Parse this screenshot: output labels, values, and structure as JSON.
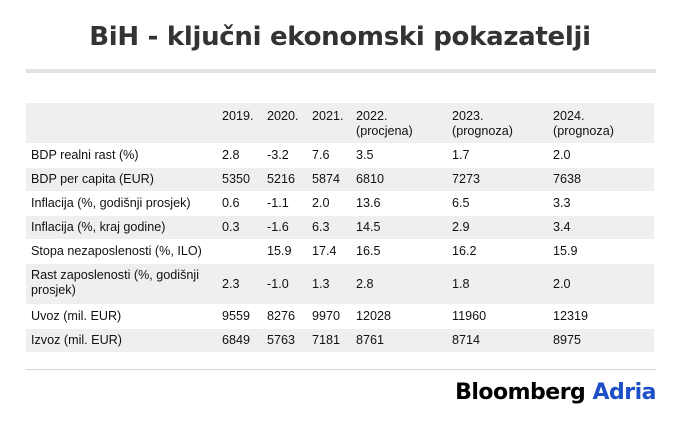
{
  "title": "BiH - ključni ekonomski pokazatelji",
  "table": {
    "header": [
      "",
      "2019.",
      "2020.",
      "2021.",
      "2022.\n(procjena)",
      "2023.\n(prognoza)",
      "2024.\n(prognoza)"
    ],
    "rows": [
      [
        "BDP realni rast (%)",
        "2.8",
        "-3.2",
        "7.6",
        "3.5",
        "1.7",
        "2.0"
      ],
      [
        "BDP per capita (EUR)",
        "5350",
        "5216",
        "5874",
        "6810",
        "7273",
        "7638"
      ],
      [
        "Inflacija (%, godišnji prosjek)",
        "0.6",
        "-1.1",
        "2.0",
        "13.6",
        "6.5",
        "3.3"
      ],
      [
        "Inflacija (%, kraj godine)",
        "0.3",
        "-1.6",
        "6.3",
        "14.5",
        "2.9",
        "3.4"
      ],
      [
        "Stopa nezaposlenosti (%, ILO)",
        "",
        "15.9",
        "17.4",
        "16.5",
        "16.2",
        "15.9"
      ],
      [
        "Rast zaposlenosti (%, godišnji prosjek)",
        "2.3",
        "-1.0",
        "1.3",
        "2.8",
        "1.8",
        "2.0"
      ],
      [
        "Uvoz (mil. EUR)",
        "9559",
        "8276",
        "9970",
        "12028",
        "11960",
        "12319"
      ],
      [
        "Izvoz (mil. EUR)",
        "6849",
        "5763",
        "7181",
        "8761",
        "8714",
        "8975"
      ]
    ]
  },
  "logo": {
    "word1": "Bloomberg",
    "word2": "Adria",
    "word2_color": "#1d4fc7"
  }
}
